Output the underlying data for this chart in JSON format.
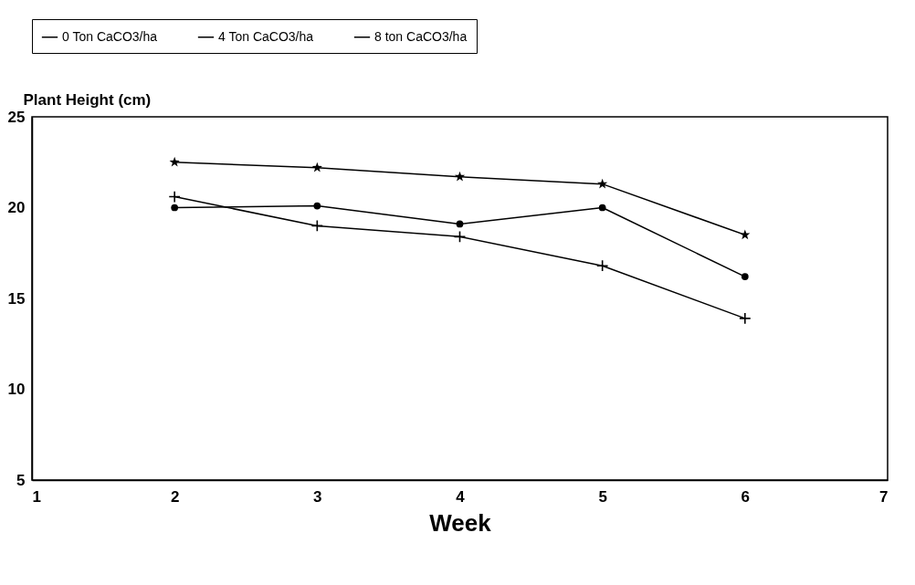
{
  "chart_data": {
    "type": "line",
    "xlabel": "Week",
    "ylabel": "Plant Height (cm)",
    "x": [
      2,
      3,
      4,
      5,
      6
    ],
    "series": [
      {
        "name": "0 Ton CaCO3/ha",
        "color": "#000000",
        "marker": "circle",
        "values": [
          20.0,
          20.1,
          19.1,
          20.0,
          16.2
        ]
      },
      {
        "name": "4 Ton CaCO3/ha",
        "color": "#000000",
        "marker": "cross",
        "values": [
          20.6,
          19.0,
          18.4,
          16.8,
          13.9
        ]
      },
      {
        "name": "8 ton CaCO3/ha",
        "color": "#000000",
        "marker": "star",
        "values": [
          22.5,
          22.2,
          21.7,
          21.3,
          18.5
        ]
      }
    ],
    "xlim": [
      1,
      7
    ],
    "xticks": [
      1,
      2,
      3,
      4,
      5,
      6,
      7
    ],
    "ylim": [
      5,
      25
    ],
    "yticks": [
      5,
      10,
      15,
      20,
      25
    ],
    "grid": false,
    "legend": "top",
    "line_style": "solid"
  }
}
